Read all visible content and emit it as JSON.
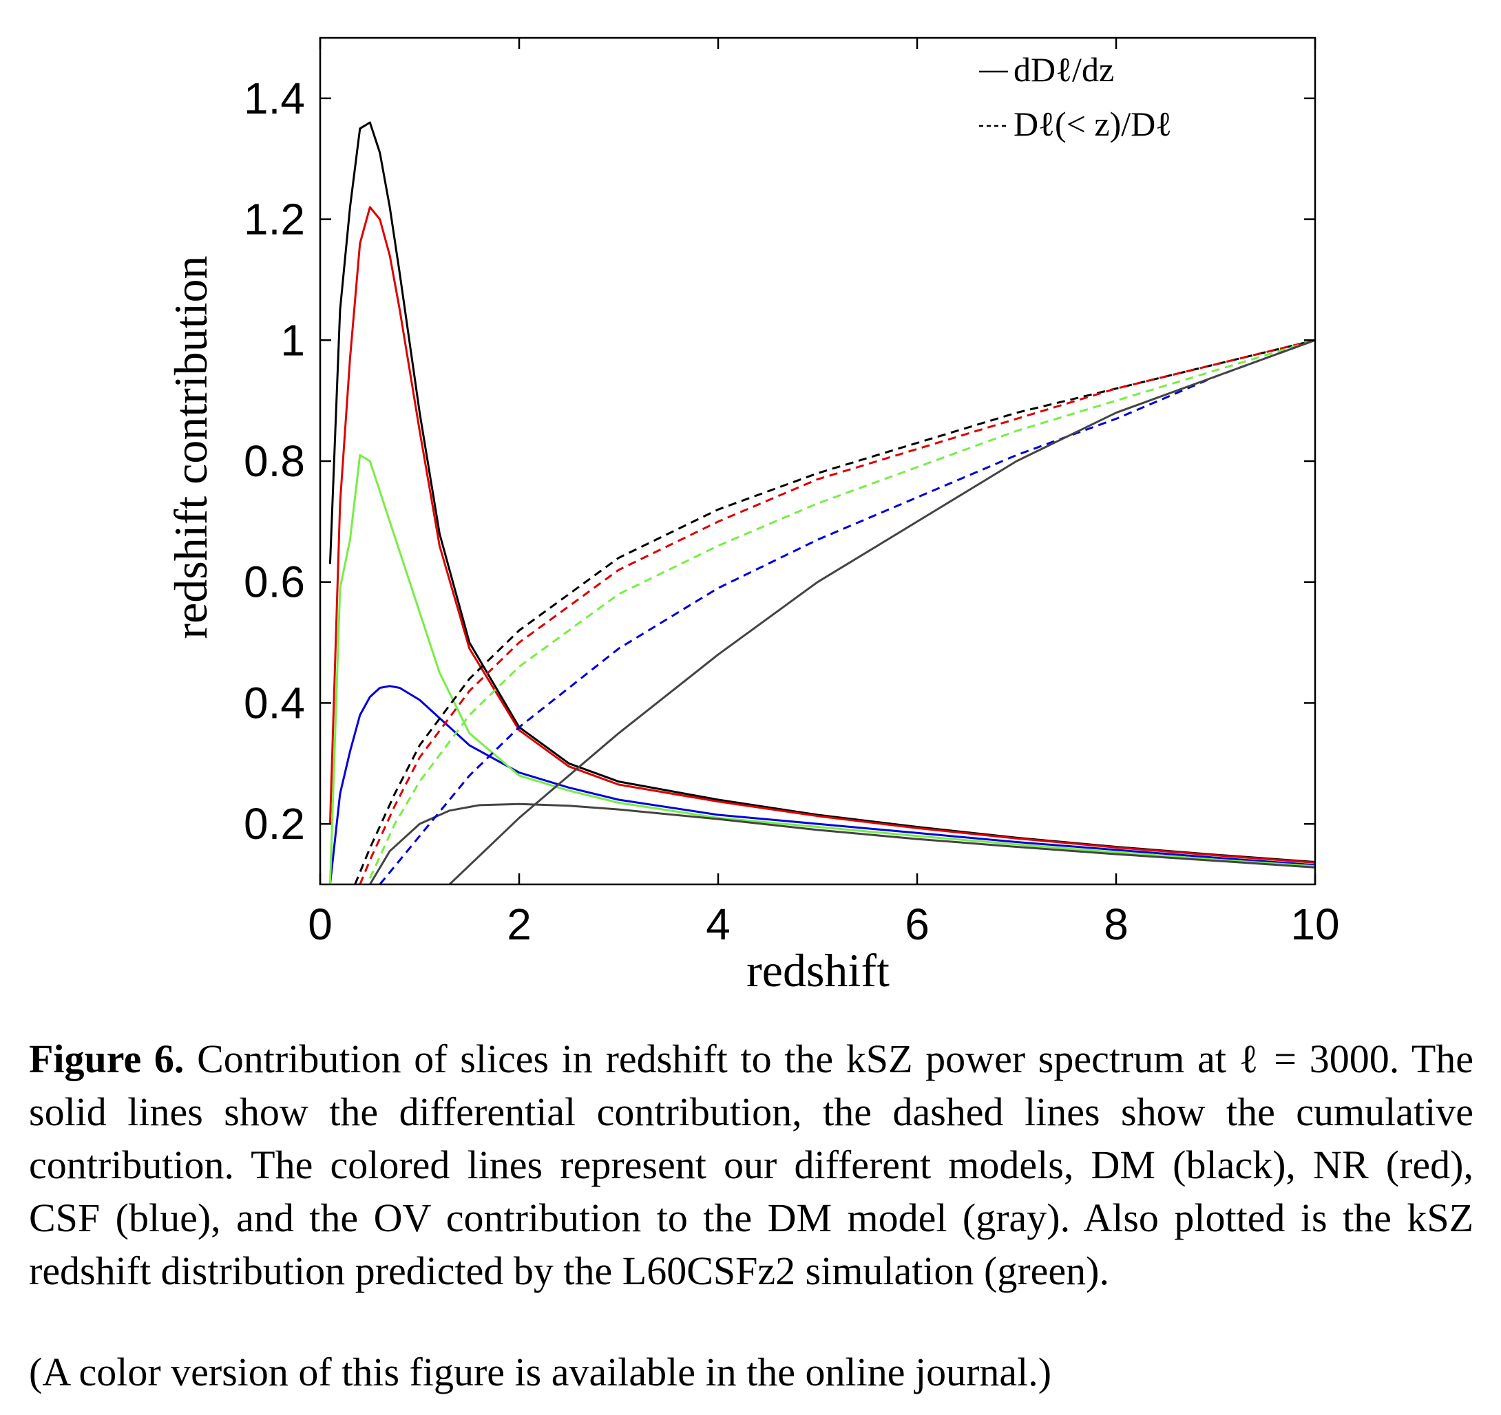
{
  "chart_data": {
    "type": "line",
    "xlabel": "redshift",
    "ylabel": "redshift contribution",
    "xlim": [
      0,
      10
    ],
    "ylim": [
      0.1,
      1.5
    ],
    "xticks": [
      "0",
      "2",
      "4",
      "6",
      "8",
      "10"
    ],
    "yticks": [
      "0.2",
      "0.4",
      "0.6",
      "0.8",
      "1",
      "1.2",
      "1.4"
    ],
    "grid": false,
    "legend": {
      "placement": "top-right",
      "entries": [
        {
          "style": "solid",
          "label": "dDℓ/dz"
        },
        {
          "style": "dashed",
          "label": "Dℓ(< z)/Dℓ"
        }
      ]
    },
    "series": [
      {
        "style": "solid",
        "color": "#000000",
        "x": [
          0.1,
          0.2,
          0.3,
          0.4,
          0.5,
          0.6,
          0.7,
          0.8,
          1.0,
          1.2,
          1.5,
          2.0,
          2.5,
          3.0,
          4.0,
          5.0,
          6.0,
          7.0,
          8.0,
          9.0,
          10.0
        ],
        "y": [
          0.63,
          1.05,
          1.22,
          1.35,
          1.36,
          1.31,
          1.22,
          1.11,
          0.88,
          0.68,
          0.5,
          0.36,
          0.3,
          0.27,
          0.24,
          0.215,
          0.195,
          0.177,
          0.162,
          0.149,
          0.137
        ]
      },
      {
        "style": "solid",
        "color": "#dd0000",
        "x": [
          0.1,
          0.2,
          0.3,
          0.4,
          0.5,
          0.6,
          0.7,
          0.8,
          1.0,
          1.2,
          1.5,
          2.0,
          2.5,
          3.0,
          4.0,
          5.0,
          6.0,
          7.0,
          8.0,
          9.0,
          10.0
        ],
        "y": [
          0.2,
          0.73,
          0.97,
          1.16,
          1.22,
          1.2,
          1.14,
          1.05,
          0.85,
          0.66,
          0.49,
          0.355,
          0.295,
          0.265,
          0.237,
          0.213,
          0.193,
          0.176,
          0.161,
          0.148,
          0.136
        ]
      },
      {
        "style": "solid",
        "color": "#0000dd",
        "x": [
          0.1,
          0.2,
          0.3,
          0.4,
          0.5,
          0.6,
          0.7,
          0.8,
          1.0,
          1.2,
          1.5,
          2.0,
          2.5,
          3.0,
          4.0,
          5.0,
          6.0,
          7.0,
          8.0,
          9.0,
          10.0
        ],
        "y": [
          0.1,
          0.25,
          0.32,
          0.38,
          0.41,
          0.425,
          0.428,
          0.425,
          0.405,
          0.375,
          0.33,
          0.285,
          0.26,
          0.24,
          0.215,
          0.2,
          0.185,
          0.17,
          0.157,
          0.144,
          0.132
        ]
      },
      {
        "style": "solid",
        "color": "#77ee44",
        "x": [
          0.1,
          0.2,
          0.3,
          0.4,
          0.5,
          0.6,
          0.7,
          0.8,
          1.0,
          1.2,
          1.5,
          2.0,
          2.5,
          3.0,
          4.0,
          5.0,
          6.0,
          7.0,
          8.0,
          9.0,
          10.0
        ],
        "y": [
          0.1,
          0.59,
          0.67,
          0.81,
          0.8,
          0.75,
          0.7,
          0.65,
          0.55,
          0.45,
          0.35,
          0.28,
          0.255,
          0.235,
          0.21,
          0.195,
          0.18,
          0.166,
          0.153,
          0.141,
          0.13
        ]
      },
      {
        "style": "solid",
        "color": "#444444",
        "x": [
          0.5,
          0.7,
          1.0,
          1.3,
          1.6,
          2.0,
          2.5,
          3.0,
          4.0,
          5.0,
          6.0,
          7.0,
          8.0,
          9.0,
          10.0
        ],
        "y": [
          0.1,
          0.155,
          0.2,
          0.222,
          0.231,
          0.233,
          0.23,
          0.224,
          0.208,
          0.19,
          0.175,
          0.162,
          0.15,
          0.139,
          0.128
        ]
      },
      {
        "style": "dashed",
        "color": "#000000",
        "x": [
          0.35,
          0.5,
          0.75,
          1.0,
          1.5,
          2.0,
          3.0,
          4.0,
          5.0,
          6.0,
          7.0,
          8.0,
          9.0,
          10.0
        ],
        "y": [
          0.1,
          0.16,
          0.25,
          0.33,
          0.44,
          0.52,
          0.64,
          0.72,
          0.78,
          0.83,
          0.88,
          0.92,
          0.96,
          1.0
        ]
      },
      {
        "style": "dashed",
        "color": "#dd0000",
        "x": [
          0.4,
          0.5,
          0.75,
          1.0,
          1.5,
          2.0,
          3.0,
          4.0,
          5.0,
          6.0,
          7.0,
          8.0,
          9.0,
          10.0
        ],
        "y": [
          0.1,
          0.14,
          0.23,
          0.31,
          0.42,
          0.5,
          0.62,
          0.7,
          0.77,
          0.82,
          0.87,
          0.92,
          0.96,
          1.0
        ]
      },
      {
        "style": "dashed",
        "color": "#77ee44",
        "x": [
          0.5,
          0.75,
          1.0,
          1.5,
          2.0,
          3.0,
          4.0,
          5.0,
          6.0,
          7.0,
          8.0,
          9.0,
          10.0
        ],
        "y": [
          0.11,
          0.2,
          0.27,
          0.38,
          0.46,
          0.58,
          0.66,
          0.73,
          0.79,
          0.85,
          0.9,
          0.95,
          1.0
        ]
      },
      {
        "style": "dashed",
        "color": "#0000dd",
        "x": [
          0.6,
          0.8,
          1.0,
          1.5,
          2.0,
          3.0,
          4.0,
          5.0,
          6.0,
          7.0,
          8.0,
          9.0,
          10.0
        ],
        "y": [
          0.1,
          0.14,
          0.18,
          0.28,
          0.36,
          0.49,
          0.59,
          0.67,
          0.74,
          0.81,
          0.87,
          0.94,
          1.0
        ]
      },
      {
        "style": "solid",
        "color": "#444444",
        "x": [
          1.3,
          2.0,
          3.0,
          4.0,
          5.0,
          6.0,
          7.0,
          8.0,
          9.0,
          10.0
        ],
        "y": [
          0.1,
          0.21,
          0.35,
          0.48,
          0.6,
          0.7,
          0.8,
          0.88,
          0.94,
          1.0
        ]
      }
    ]
  },
  "caption": {
    "label": "Figure 6.",
    "text": "Contribution of slices in redshift to the kSZ power spectrum at ℓ = 3000. The solid lines show the differential contribution, the dashed lines show the cumulative contribution. The colored lines represent our different models, DM (black), NR (red), CSF (blue), and the OV contribution to the DM model (gray). Also plotted is the kSZ redshift distribution predicted by the L60CSFz2 simulation (green).",
    "note": "(A color version of this figure is available in the online journal.)"
  }
}
